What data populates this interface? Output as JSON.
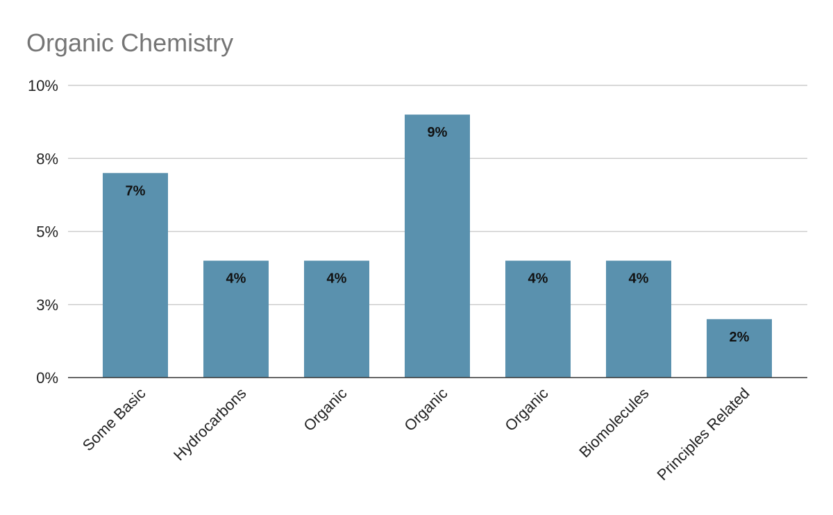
{
  "chart_data": {
    "type": "bar",
    "title": "Organic Chemistry",
    "categories": [
      "Some Basic",
      "Hydrocarbons",
      "Organic",
      "Organic",
      "Organic",
      "Biomolecules",
      "Principles Related"
    ],
    "values": [
      7,
      4,
      4,
      9,
      4,
      4,
      2
    ],
    "value_labels": [
      "7%",
      "4%",
      "4%",
      "9%",
      "4%",
      "4%",
      "2%"
    ],
    "color": "#5a91ae",
    "ylim": [
      0,
      10
    ],
    "yticks": [
      {
        "value": 0,
        "label": "0%"
      },
      {
        "value": 2.5,
        "label": "3%"
      },
      {
        "value": 5,
        "label": "5%"
      },
      {
        "value": 7.5,
        "label": "8%"
      },
      {
        "value": 10,
        "label": "10%"
      }
    ],
    "grid": true
  }
}
